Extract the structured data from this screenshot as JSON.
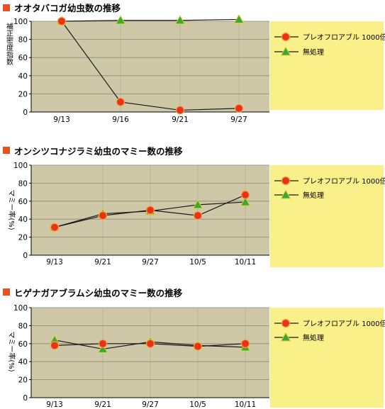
{
  "colors": {
    "page_bg": "#ffffff",
    "plot_bg": "#cfc8a8",
    "legend_bg": "#faf08a",
    "title_square": "#e8521e",
    "marker_red": "#e8331a",
    "marker_red_edge": "#f6a13a",
    "marker_green": "#3fa535",
    "marker_green_edge": "#d6d83a",
    "line": "#1a1a1a",
    "grid": "#8d8670"
  },
  "chart_data": [
    {
      "type": "line",
      "title": "オオタバコガ幼虫数の推移",
      "ylabel": "補正密度指数",
      "ylabel_rotated": false,
      "ylim": [
        0,
        100
      ],
      "yticks": [
        0,
        20,
        40,
        60,
        80,
        100
      ],
      "categories": [
        "9/13",
        "9/16",
        "9/21",
        "9/27"
      ],
      "series": [
        {
          "name": "プレオフロアブル 1000倍",
          "marker": "circle",
          "values": [
            100,
            11,
            2,
            4
          ]
        },
        {
          "name": "無処理",
          "marker": "triangle",
          "values": [
            100,
            101,
            101,
            102
          ]
        }
      ]
    },
    {
      "type": "line",
      "title": "オンシツコナジラミ幼虫のマミー数の推移",
      "ylabel": "マミー率(%)",
      "ylabel_rotated": true,
      "ylim": [
        0,
        100
      ],
      "yticks": [
        0,
        20,
        40,
        60,
        80,
        100
      ],
      "categories": [
        "9/13",
        "9/21",
        "9/27",
        "10/5",
        "10/11"
      ],
      "series": [
        {
          "name": "プレオフロアブル 1000倍",
          "marker": "circle",
          "values": [
            31,
            44,
            50,
            44,
            67
          ]
        },
        {
          "name": "無処理",
          "marker": "triangle",
          "values": [
            31,
            46,
            49,
            56,
            59
          ]
        }
      ]
    },
    {
      "type": "line",
      "title": "ヒゲナガアブラムシ幼虫のマミー数の推移",
      "ylabel": "マミー率(%)",
      "ylabel_rotated": true,
      "ylim": [
        0,
        100
      ],
      "yticks": [
        0,
        20,
        40,
        60,
        80,
        100
      ],
      "categories": [
        "9/13",
        "9/21",
        "9/27",
        "10/5",
        "10/11"
      ],
      "series": [
        {
          "name": "プレオフロアブル 1000倍",
          "marker": "circle",
          "values": [
            58,
            60,
            60,
            57,
            60
          ]
        },
        {
          "name": "無処理",
          "marker": "triangle",
          "values": [
            64,
            54,
            62,
            58,
            56
          ]
        }
      ]
    }
  ]
}
